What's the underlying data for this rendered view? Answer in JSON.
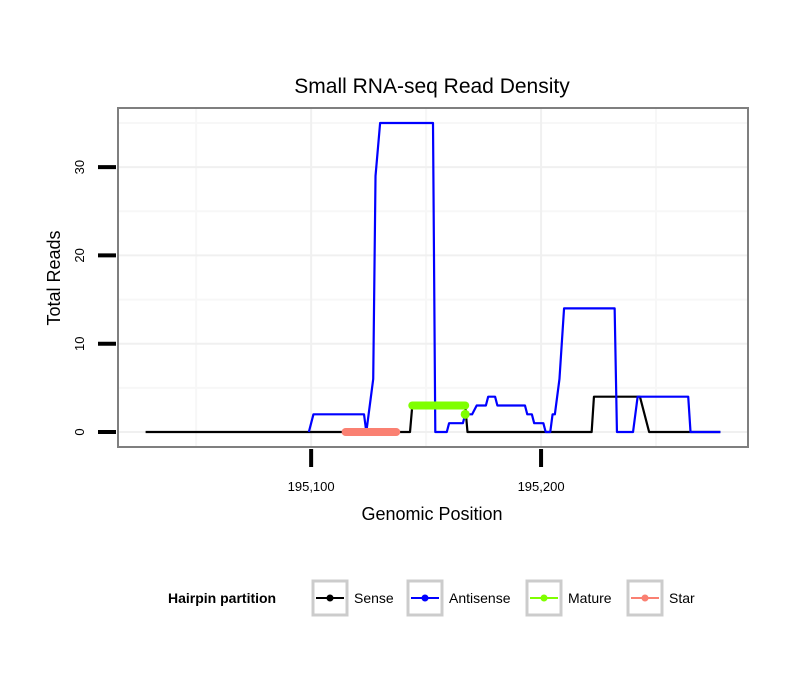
{
  "chart_data": {
    "type": "line",
    "title": "Small RNA-seq Read Density",
    "xlabel": "Genomic Position",
    "ylabel": "Total Reads",
    "xlim": [
      195016,
      195290
    ],
    "ylim": [
      -1.7,
      36.7
    ],
    "xticks": [
      {
        "value": 195100,
        "label": "195,100"
      },
      {
        "value": 195200,
        "label": "195,200"
      }
    ],
    "yticks": [
      {
        "value": 0,
        "label": "0"
      },
      {
        "value": 10,
        "label": "10"
      },
      {
        "value": 20,
        "label": "20"
      },
      {
        "value": 30,
        "label": "30"
      }
    ],
    "grid": true,
    "legend": {
      "title": "Hairpin partition",
      "placement": "bottom"
    },
    "series": [
      {
        "name": "Sense",
        "color": "#000000",
        "points": [
          [
            195028,
            0
          ],
          [
            195143,
            0
          ],
          [
            195144,
            3
          ],
          [
            195167,
            3
          ],
          [
            195168,
            0
          ],
          [
            195222,
            0
          ],
          [
            195223,
            4
          ],
          [
            195243,
            4
          ],
          [
            195247,
            0
          ],
          [
            195278,
            0
          ]
        ]
      },
      {
        "name": "Antisense",
        "color": "#0000ff",
        "points": [
          [
            195099,
            0
          ],
          [
            195101,
            2
          ],
          [
            195123,
            2
          ],
          [
            195124,
            0
          ],
          [
            195126,
            4
          ],
          [
            195127,
            6
          ],
          [
            195128,
            29
          ],
          [
            195130,
            35
          ],
          [
            195153,
            35
          ],
          [
            195154,
            0
          ],
          [
            195159,
            0
          ],
          [
            195160,
            1
          ],
          [
            195166,
            1
          ],
          [
            195167,
            2
          ],
          [
            195170,
            2
          ],
          [
            195172,
            3
          ],
          [
            195176,
            3
          ],
          [
            195177,
            4
          ],
          [
            195180,
            4
          ],
          [
            195181,
            3
          ],
          [
            195193,
            3
          ],
          [
            195194,
            2
          ],
          [
            195196,
            2
          ],
          [
            195197,
            1
          ],
          [
            195201,
            1
          ],
          [
            195202,
            0
          ],
          [
            195204,
            0
          ],
          [
            195205,
            2
          ],
          [
            195206,
            2
          ],
          [
            195207,
            4
          ],
          [
            195208,
            6
          ],
          [
            195210,
            14
          ],
          [
            195232,
            14
          ],
          [
            195233,
            0
          ],
          [
            195240,
            0
          ],
          [
            195242,
            4
          ],
          [
            195264,
            4
          ],
          [
            195265,
            0
          ],
          [
            195278,
            0
          ]
        ]
      },
      {
        "name": "Mature",
        "color": "#7fff00",
        "points": [
          [
            195144,
            3
          ],
          [
            195167,
            3
          ]
        ],
        "extra_points": [
          [
            195167,
            2
          ]
        ]
      },
      {
        "name": "Star",
        "color": "#fa8072",
        "points": [
          [
            195115,
            0
          ],
          [
            195137,
            0
          ]
        ]
      }
    ]
  }
}
